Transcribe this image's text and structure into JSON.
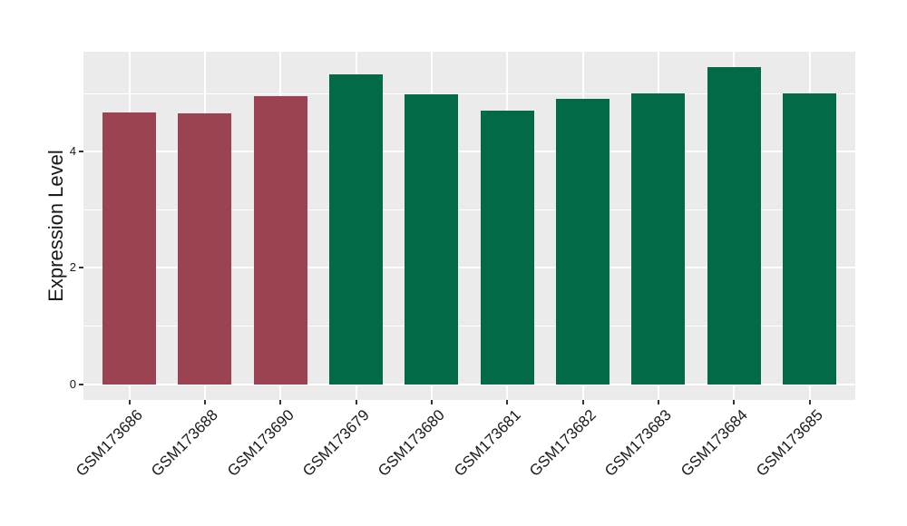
{
  "chart_data": {
    "type": "bar",
    "title": "",
    "xlabel": "",
    "ylabel": "Expression Level",
    "categories": [
      "GSM173686",
      "GSM173688",
      "GSM173690",
      "GSM173679",
      "GSM173680",
      "GSM173681",
      "GSM173682",
      "GSM173683",
      "GSM173684",
      "GSM173685"
    ],
    "values": [
      4.68,
      4.66,
      4.95,
      5.33,
      4.99,
      4.7,
      4.91,
      5.01,
      5.45,
      5.0
    ],
    "bar_color_keys": [
      "group1",
      "group1",
      "group1",
      "group2",
      "group2",
      "group2",
      "group2",
      "group2",
      "group2",
      "group2"
    ],
    "colors": {
      "group1": "#9C4351",
      "group2": "#036A48",
      "panel_background": "#EBEBEB",
      "gridline": "#FFFFFF",
      "tick_mark": "#333333",
      "tick_text": "#1A1A1A"
    },
    "yticks": [
      0,
      2,
      4
    ],
    "yticks_minor": [
      1,
      3,
      5
    ],
    "ylim": [
      -0.2725,
      5.7225
    ],
    "grid": true,
    "legend": false,
    "bar_width_ratio": 0.71,
    "x_tick_rotation_deg": 45
  }
}
